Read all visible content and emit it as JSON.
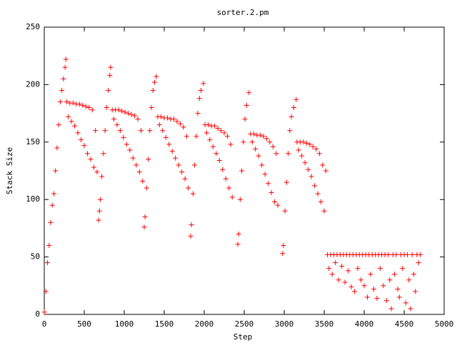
{
  "chart_data": {
    "type": "scatter",
    "title": "sorter.2.pm",
    "x_label": "Step",
    "y_label": "Stack Size",
    "color": "#ff0000",
    "marker": "plus",
    "xlim": [
      0,
      5000
    ],
    "ylim": [
      0,
      250
    ],
    "xticks": [
      0,
      500,
      1000,
      1500,
      2000,
      2500,
      3000,
      3500,
      4000,
      4500,
      5000
    ],
    "yticks": [
      0,
      50,
      100,
      150,
      200,
      250
    ],
    "x": [
      0,
      20,
      40,
      60,
      80,
      100,
      120,
      140,
      160,
      180,
      200,
      220,
      240,
      260,
      270,
      280,
      300,
      320,
      340,
      360,
      380,
      400,
      420,
      440,
      460,
      480,
      500,
      520,
      540,
      560,
      580,
      600,
      620,
      640,
      660,
      680,
      690,
      700,
      720,
      740,
      760,
      780,
      800,
      820,
      830,
      850,
      870,
      890,
      910,
      930,
      950,
      970,
      990,
      1010,
      1030,
      1050,
      1070,
      1090,
      1110,
      1130,
      1150,
      1170,
      1190,
      1210,
      1230,
      1250,
      1260,
      1280,
      1300,
      1320,
      1340,
      1360,
      1380,
      1400,
      1420,
      1440,
      1460,
      1480,
      1500,
      1520,
      1540,
      1560,
      1580,
      1600,
      1620,
      1640,
      1660,
      1680,
      1700,
      1720,
      1740,
      1760,
      1780,
      1800,
      1830,
      1840,
      1860,
      1880,
      1900,
      1920,
      1940,
      1960,
      1990,
      2010,
      2030,
      2050,
      2070,
      2090,
      2110,
      2130,
      2150,
      2170,
      2190,
      2210,
      2230,
      2250,
      2270,
      2290,
      2310,
      2330,
      2350,
      2420,
      2430,
      2450,
      2470,
      2490,
      2510,
      2530,
      2560,
      2580,
      2600,
      2620,
      2640,
      2660,
      2680,
      2700,
      2720,
      2740,
      2760,
      2780,
      2800,
      2820,
      2840,
      2860,
      2880,
      2900,
      2920,
      2980,
      2990,
      3010,
      3030,
      3050,
      3070,
      3090,
      3120,
      3150,
      3160,
      3180,
      3200,
      3220,
      3240,
      3260,
      3280,
      3300,
      3320,
      3340,
      3360,
      3380,
      3400,
      3420,
      3440,
      3460,
      3480,
      3500,
      3520,
      3540,
      3560,
      3580,
      3600,
      3620,
      3640,
      3660,
      3680,
      3700,
      3720,
      3740,
      3760,
      3780,
      3800,
      3820,
      3840,
      3860,
      3880,
      3900,
      3920,
      3940,
      3960,
      3980,
      4000,
      4020,
      4040,
      4060,
      4080,
      4100,
      4120,
      4140,
      4160,
      4180,
      4200,
      4220,
      4240,
      4260,
      4280,
      4300,
      4320,
      4340,
      4360,
      4380,
      4400,
      4420,
      4440,
      4460,
      4480,
      4500,
      4520,
      4540,
      4560,
      4580,
      4600,
      4620,
      4640,
      4660,
      4680,
      4700
    ],
    "values": [
      2,
      20,
      45,
      60,
      80,
      95,
      105,
      125,
      145,
      165,
      185,
      195,
      205,
      215,
      222,
      185,
      172,
      184,
      168,
      184,
      164,
      183,
      158,
      183,
      152,
      182,
      147,
      181,
      140,
      180,
      135,
      178,
      128,
      160,
      124,
      82,
      90,
      100,
      120,
      140,
      160,
      180,
      195,
      208,
      215,
      178,
      170,
      178,
      165,
      178,
      160,
      177,
      154,
      176,
      148,
      175,
      143,
      174,
      136,
      173,
      130,
      170,
      124,
      160,
      116,
      76,
      85,
      110,
      135,
      160,
      180,
      195,
      202,
      207,
      172,
      165,
      172,
      160,
      171,
      154,
      171,
      148,
      170,
      142,
      170,
      136,
      168,
      130,
      166,
      124,
      163,
      118,
      155,
      110,
      68,
      78,
      105,
      130,
      155,
      175,
      188,
      195,
      201,
      165,
      158,
      165,
      152,
      164,
      146,
      164,
      140,
      162,
      134,
      160,
      126,
      158,
      118,
      155,
      110,
      148,
      102,
      61,
      70,
      100,
      125,
      150,
      170,
      182,
      193,
      157,
      150,
      157,
      144,
      156,
      138,
      156,
      130,
      155,
      122,
      153,
      114,
      150,
      106,
      146,
      98,
      140,
      95,
      53,
      60,
      90,
      115,
      140,
      160,
      172,
      180,
      187,
      150,
      143,
      150,
      138,
      150,
      132,
      149,
      126,
      148,
      120,
      146,
      112,
      144,
      105,
      140,
      98,
      130,
      90,
      125,
      52,
      40,
      52,
      35,
      52,
      45,
      52,
      30,
      52,
      42,
      52,
      28,
      52,
      38,
      52,
      24,
      52,
      20,
      52,
      40,
      52,
      30,
      52,
      25,
      52,
      15,
      52,
      35,
      52,
      22,
      52,
      14,
      52,
      40,
      52,
      25,
      52,
      12,
      52,
      30,
      5,
      52,
      35,
      52,
      22,
      15,
      52,
      40,
      52,
      10,
      52,
      30,
      5,
      52,
      35,
      20,
      52,
      45,
      52
    ]
  }
}
